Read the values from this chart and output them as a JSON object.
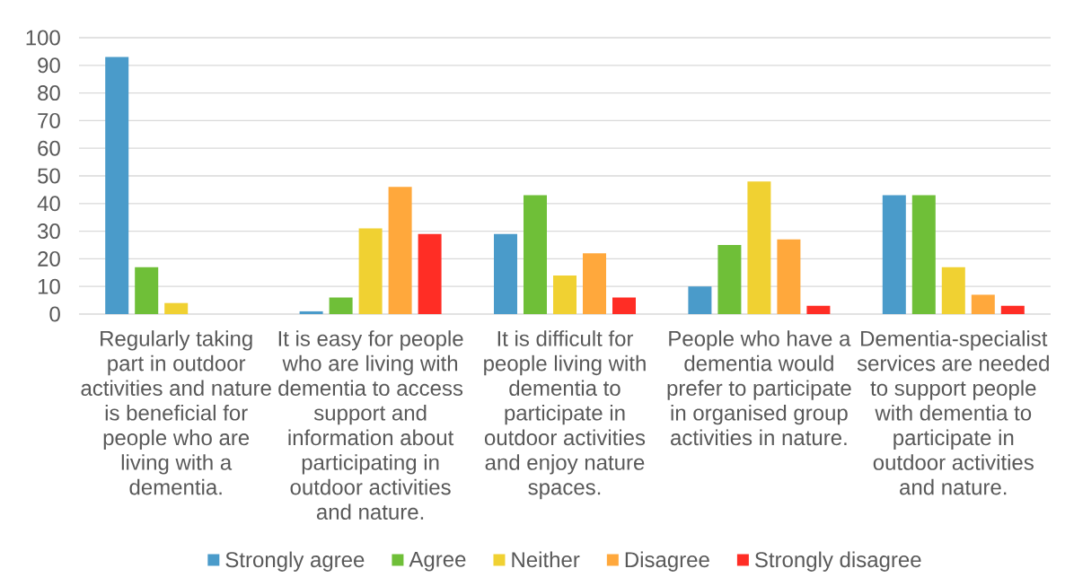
{
  "chart_data": {
    "type": "bar",
    "categories": [
      "Regularly taking part in outdoor activities and nature is beneficial for people who are living with a dementia.",
      "It is easy for people who are living with dementia to access support and information about participating in outdoor activities and nature.",
      "It is difficult for people living with dementia to participate in outdoor activities and enjoy nature spaces.",
      "People who have a dementia would prefer to participate in organised group activities in nature.",
      "Dementia-specialist services are needed to support people with dementia to participate in outdoor activities and nature."
    ],
    "series": [
      {
        "name": "Strongly agree",
        "color": "#4a9bca",
        "values": [
          93,
          1,
          29,
          10,
          43
        ]
      },
      {
        "name": "Agree",
        "color": "#6fbf38",
        "values": [
          17,
          6,
          43,
          25,
          43
        ]
      },
      {
        "name": "Neither",
        "color": "#f0d132",
        "values": [
          4,
          31,
          14,
          48,
          17
        ]
      },
      {
        "name": "Disagree",
        "color": "#ffa83c",
        "values": [
          0,
          46,
          22,
          27,
          7
        ]
      },
      {
        "name": "Strongly disagree",
        "color": "#ff2d25",
        "values": [
          0,
          29,
          6,
          3,
          3
        ]
      }
    ],
    "ylim": [
      0,
      100
    ],
    "yticks": [
      0,
      10,
      20,
      30,
      40,
      50,
      60,
      70,
      80,
      90,
      100
    ],
    "grid": "y",
    "legend": "bottom"
  }
}
